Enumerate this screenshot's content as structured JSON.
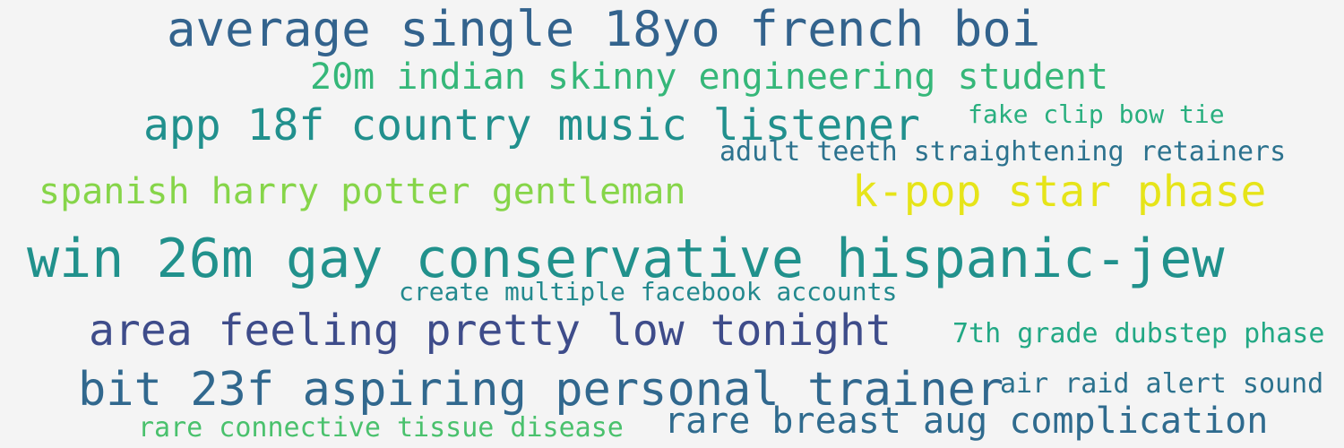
{
  "words": [
    {
      "text": "average single 18yo french boi",
      "color": "#33638d"
    },
    {
      "text": "20m indian skinny engineering student",
      "color": "#35b779"
    },
    {
      "text": "app 18f country music listener",
      "color": "#21908d"
    },
    {
      "text": "fake clip bow tie",
      "color": "#29af7f"
    },
    {
      "text": "adult teeth straightening retainers",
      "color": "#2c728e"
    },
    {
      "text": "spanish harry potter gentleman",
      "color": "#86d549"
    },
    {
      "text": "k-pop star phase",
      "color": "#e6e419"
    },
    {
      "text": "win 26m gay conservative hispanic-jew",
      "color": "#21918c"
    },
    {
      "text": "create multiple facebook accounts",
      "color": "#23898e"
    },
    {
      "text": "area feeling pretty low tonight",
      "color": "#3e4c8a"
    },
    {
      "text": "7th grade dubstep phase",
      "color": "#22a884"
    },
    {
      "text": "air raid alert sound",
      "color": "#2c728e"
    },
    {
      "text": "bit 23f aspiring personal trainer",
      "color": "#31688e"
    },
    {
      "text": "rare breast aug complication",
      "color": "#2f6b8e"
    },
    {
      "text": "rare connective tissue disease",
      "color": "#4ac16d"
    }
  ]
}
